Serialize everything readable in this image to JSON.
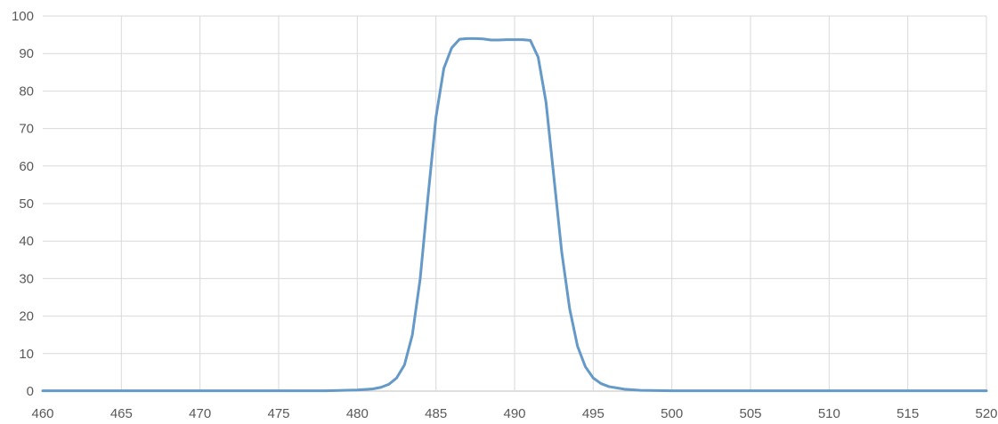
{
  "chart_data": {
    "type": "line",
    "title": "",
    "xlabel": "",
    "ylabel": "",
    "xlim": [
      460,
      520
    ],
    "ylim": [
      0,
      100
    ],
    "x_ticks": [
      460,
      465,
      470,
      475,
      480,
      485,
      490,
      495,
      500,
      505,
      510,
      515,
      520
    ],
    "y_ticks": [
      0,
      10,
      20,
      30,
      40,
      50,
      60,
      70,
      80,
      90,
      100
    ],
    "grid": true,
    "legend": "none",
    "series": [
      {
        "color": "#6499c8",
        "x": [
          460,
          470,
          478,
          480,
          481,
          481.5,
          482,
          482.5,
          483,
          483.5,
          484,
          484.5,
          485,
          485.5,
          486,
          486.5,
          487,
          487.5,
          488,
          488.5,
          489,
          489.5,
          490,
          490.5,
          491,
          491.5,
          492,
          492.5,
          493,
          493.5,
          494,
          494.5,
          495,
          495.5,
          496,
          497,
          498,
          500,
          510,
          520
        ],
        "y": [
          0.1,
          0.1,
          0.1,
          0.3,
          0.6,
          1.0,
          1.8,
          3.5,
          7.0,
          15.0,
          30.0,
          52.0,
          73.0,
          86.0,
          91.5,
          93.8,
          94.0,
          94.0,
          93.9,
          93.6,
          93.6,
          93.7,
          93.7,
          93.7,
          93.5,
          89.0,
          77.0,
          57.0,
          37.0,
          22.0,
          12.0,
          6.5,
          3.5,
          2.0,
          1.2,
          0.5,
          0.2,
          0.1,
          0.1,
          0.1
        ]
      }
    ]
  }
}
